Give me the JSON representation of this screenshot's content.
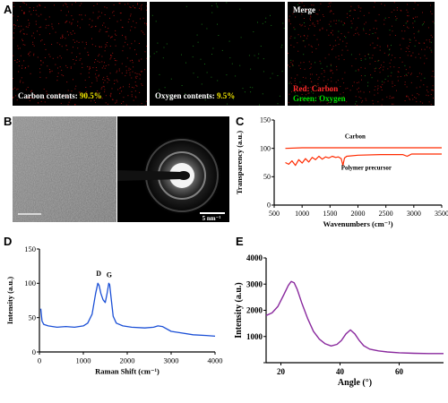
{
  "panels": {
    "a": {
      "letter": "A",
      "carbon_label": "Carbon contents:",
      "carbon_value": "90.5%",
      "oxygen_label": "Oxygen contents:",
      "oxygen_value": "9.5%",
      "merge_title": "Merge",
      "merge_red_label": "Red: Carbon",
      "merge_green_label": "Green: Oxygen",
      "colors": {
        "carbon": "#c81414",
        "oxygen": "#1ea01e",
        "value_highlight": "#f2e600"
      }
    },
    "b": {
      "letter": "B",
      "scale_bar_label": "5 nm⁻¹"
    },
    "c": {
      "letter": "C"
    },
    "d": {
      "letter": "D"
    },
    "e": {
      "letter": "E"
    }
  },
  "chart_data": [
    {
      "panel": "C",
      "type": "line",
      "xlabel": "Wavenumbers (cm⁻¹)",
      "ylabel": "Transparency (a.u.)",
      "xlim": [
        500,
        3500
      ],
      "ylim": [
        0,
        150
      ],
      "xticks": [
        500,
        1000,
        1500,
        2000,
        2500,
        3000,
        3500
      ],
      "yticks": [
        0,
        50,
        100,
        150
      ],
      "color": "#ff2a00",
      "series": [
        {
          "name": "Carbon",
          "x": [
            700,
            1000,
            1500,
            2000,
            2500,
            3000,
            3500
          ],
          "y": [
            100,
            101,
            101,
            101,
            101,
            101,
            101
          ]
        },
        {
          "name": "Polymer precursor",
          "x": [
            700,
            760,
            820,
            880,
            940,
            1000,
            1060,
            1120,
            1180,
            1240,
            1300,
            1360,
            1420,
            1480,
            1540,
            1600,
            1650,
            1700,
            1730,
            1760,
            1800,
            2000,
            2400,
            2800,
            2880,
            2920,
            2960,
            3100,
            3500
          ],
          "y": [
            75,
            72,
            78,
            70,
            80,
            74,
            82,
            76,
            84,
            80,
            86,
            81,
            85,
            83,
            86,
            84,
            85,
            82,
            70,
            83,
            86,
            88,
            89,
            89,
            86,
            88,
            90,
            90,
            90
          ]
        }
      ]
    },
    {
      "panel": "D",
      "type": "line",
      "xlabel": "Raman Shift (cm⁻¹)",
      "ylabel": "Intensity (a.u.)",
      "xlim": [
        0,
        4000
      ],
      "ylim": [
        0,
        150
      ],
      "xticks": [
        0,
        1000,
        2000,
        3000,
        4000
      ],
      "yticks": [
        0,
        50,
        100,
        150
      ],
      "color": "#1a4fd6",
      "peak_labels": [
        {
          "text": "D",
          "x": 1350,
          "y": 103
        },
        {
          "text": "G",
          "x": 1590,
          "y": 101
        }
      ],
      "series": [
        {
          "x": [
            30,
            60,
            100,
            200,
            400,
            600,
            800,
            1000,
            1100,
            1200,
            1280,
            1330,
            1360,
            1400,
            1450,
            1500,
            1540,
            1580,
            1600,
            1630,
            1680,
            1750,
            1900,
            2100,
            2400,
            2600,
            2700,
            2800,
            3000,
            3200,
            3500,
            3800,
            4000
          ],
          "y": [
            63,
            45,
            40,
            38,
            36,
            37,
            36,
            38,
            42,
            55,
            85,
            100,
            97,
            85,
            76,
            72,
            85,
            100,
            98,
            80,
            52,
            42,
            38,
            36,
            35,
            36,
            38,
            37,
            30,
            28,
            25,
            24,
            23
          ]
        }
      ]
    },
    {
      "panel": "E",
      "type": "line",
      "xlabel": "Angle (°)",
      "ylabel": "Intensity (a.u.)",
      "xlim": [
        15,
        75
      ],
      "ylim": [
        0,
        4000
      ],
      "xticks": [
        20,
        40,
        60
      ],
      "yticks": [
        0,
        1000,
        2000,
        3000,
        4000
      ],
      "color": "#8a2a9e",
      "series": [
        {
          "x": [
            15,
            17,
            19,
            21,
            22.5,
            23.5,
            24.5,
            25.5,
            27,
            29,
            31,
            33,
            35,
            37,
            39,
            40.5,
            42,
            43.5,
            45,
            46.5,
            48,
            50,
            53,
            56,
            60,
            65,
            70,
            75
          ],
          "y": [
            1800,
            1900,
            2150,
            2600,
            2950,
            3100,
            3050,
            2800,
            2300,
            1700,
            1200,
            900,
            720,
            640,
            700,
            850,
            1100,
            1250,
            1100,
            850,
            650,
            520,
            450,
            410,
            380,
            360,
            350,
            350
          ]
        }
      ]
    },
    {
      "panel": "B",
      "type": "other",
      "description_free": true
    }
  ]
}
